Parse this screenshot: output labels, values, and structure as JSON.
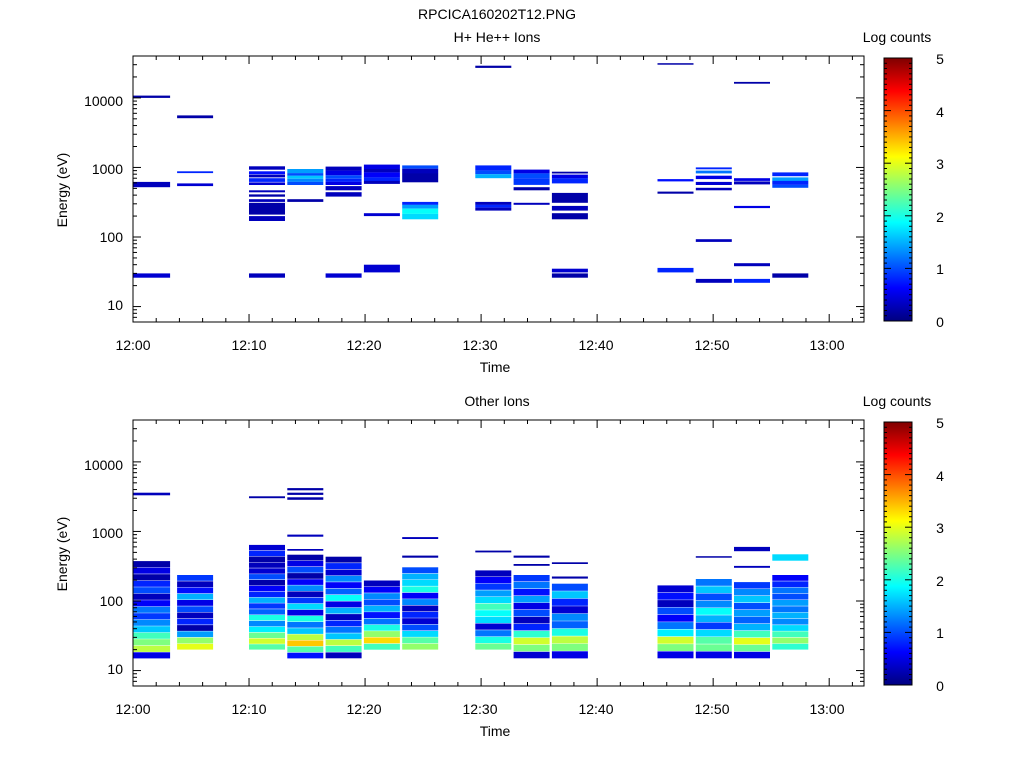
{
  "figure_title": "RPCICA160202T12.PNG",
  "colormap": [
    "#00007f",
    "#0000ff",
    "#007fff",
    "#00ffff",
    "#7fff7f",
    "#ffff00",
    "#ff7f00",
    "#ff0000",
    "#7f0000"
  ],
  "chart_data": [
    {
      "type": "heatmap",
      "title": "H+ He++ Ions",
      "xlabel": "Time",
      "ylabel": "Energy (eV)",
      "xlim": [
        "12:00",
        "13:03"
      ],
      "xticks": [
        "12:00",
        "12:10",
        "12:20",
        "12:30",
        "12:40",
        "12:50",
        "13:00"
      ],
      "yscale": "log",
      "ylim": [
        6,
        40000
      ],
      "yticks": [
        "10",
        "100",
        "1000",
        "10000"
      ],
      "grid": false,
      "colorbar": {
        "label": "Log counts",
        "range": [
          0,
          5
        ],
        "ticks": [
          "0",
          "1",
          "2",
          "3",
          "4",
          "5"
        ]
      },
      "time_bins_min": [
        [
          0,
          3.2
        ],
        [
          3.8,
          6.9
        ],
        [
          10.0,
          13.1
        ],
        [
          13.3,
          16.4
        ],
        [
          16.6,
          19.7
        ],
        [
          19.9,
          23.0
        ],
        [
          23.2,
          26.3
        ],
        [
          29.5,
          32.6
        ],
        [
          32.8,
          35.9
        ],
        [
          36.1,
          39.2
        ],
        [
          45.2,
          48.3
        ],
        [
          48.5,
          51.6
        ],
        [
          51.8,
          54.9
        ],
        [
          55.1,
          58.2
        ]
      ],
      "cells_note": "each cell: [time_bin_index, energy_low_eV, energy_high_eV, log_counts]",
      "cells": [
        [
          0,
          10000,
          10800,
          0.2
        ],
        [
          0,
          520,
          620,
          0.3
        ],
        [
          0,
          26,
          30,
          0.4
        ],
        [
          1,
          5100,
          5600,
          0.2
        ],
        [
          1,
          830,
          880,
          0.8
        ],
        [
          1,
          540,
          590,
          0.4
        ],
        [
          2,
          930,
          1040,
          0.3
        ],
        [
          2,
          800,
          880,
          0.7
        ],
        [
          2,
          720,
          790,
          0.3
        ],
        [
          2,
          620,
          700,
          0.8
        ],
        [
          2,
          560,
          610,
          0.4
        ],
        [
          2,
          440,
          470,
          0.3
        ],
        [
          2,
          380,
          410,
          0.2
        ],
        [
          2,
          320,
          350,
          0.3
        ],
        [
          2,
          210,
          310,
          0.2
        ],
        [
          2,
          170,
          200,
          0.3
        ],
        [
          2,
          26,
          30,
          0.3
        ],
        [
          3,
          830,
          950,
          1.4
        ],
        [
          3,
          760,
          830,
          1.0
        ],
        [
          3,
          690,
          760,
          1.6
        ],
        [
          3,
          620,
          690,
          1.3
        ],
        [
          3,
          560,
          620,
          1.0
        ],
        [
          3,
          320,
          350,
          0.2
        ],
        [
          4,
          900,
          1030,
          0.3
        ],
        [
          4,
          770,
          900,
          0.5
        ],
        [
          4,
          690,
          770,
          1.0
        ],
        [
          4,
          620,
          690,
          0.8
        ],
        [
          4,
          560,
          620,
          0.5
        ],
        [
          4,
          470,
          540,
          0.3
        ],
        [
          4,
          380,
          440,
          0.3
        ],
        [
          4,
          26,
          30,
          0.4
        ],
        [
          5,
          950,
          1100,
          0.5
        ],
        [
          5,
          850,
          950,
          0.3
        ],
        [
          5,
          720,
          850,
          0.6
        ],
        [
          5,
          640,
          720,
          0.8
        ],
        [
          5,
          580,
          640,
          0.3
        ],
        [
          5,
          200,
          220,
          0.4
        ],
        [
          5,
          31,
          40,
          0.4
        ],
        [
          6,
          960,
          1070,
          1.0
        ],
        [
          6,
          820,
          960,
          0.3
        ],
        [
          6,
          610,
          820,
          0.2
        ],
        [
          6,
          290,
          320,
          0.8
        ],
        [
          6,
          255,
          290,
          1.4
        ],
        [
          6,
          215,
          255,
          1.9
        ],
        [
          6,
          180,
          215,
          1.7
        ],
        [
          7,
          27000,
          29000,
          0.2
        ],
        [
          7,
          900,
          1070,
          0.8
        ],
        [
          7,
          800,
          900,
          1.0
        ],
        [
          7,
          700,
          800,
          1.5
        ],
        [
          7,
          290,
          320,
          0.3
        ],
        [
          7,
          265,
          290,
          0.8
        ],
        [
          7,
          240,
          265,
          0.3
        ],
        [
          8,
          820,
          930,
          0.5
        ],
        [
          8,
          700,
          820,
          1.0
        ],
        [
          8,
          560,
          700,
          0.9
        ],
        [
          8,
          470,
          520,
          0.2
        ],
        [
          8,
          290,
          310,
          0.3
        ],
        [
          9,
          820,
          870,
          0.2
        ],
        [
          9,
          700,
          790,
          0.5
        ],
        [
          9,
          590,
          700,
          0.8
        ],
        [
          9,
          310,
          430,
          0.2
        ],
        [
          9,
          240,
          280,
          0.3
        ],
        [
          9,
          180,
          220,
          0.2
        ],
        [
          9,
          31,
          35,
          0.4
        ],
        [
          9,
          26,
          30,
          0.2
        ],
        [
          10,
          30000,
          31500,
          0.2
        ],
        [
          10,
          630,
          680,
          0.7
        ],
        [
          10,
          420,
          450,
          0.2
        ],
        [
          10,
          31,
          36,
          0.8
        ],
        [
          11,
          940,
          1000,
          0.8
        ],
        [
          11,
          820,
          900,
          1.2
        ],
        [
          11,
          680,
          760,
          0.5
        ],
        [
          11,
          560,
          620,
          0.4
        ],
        [
          11,
          470,
          510,
          0.3
        ],
        [
          11,
          85,
          93,
          0.3
        ],
        [
          11,
          22,
          25,
          0.3
        ],
        [
          12,
          16000,
          17000,
          0.2
        ],
        [
          12,
          640,
          700,
          0.5
        ],
        [
          12,
          570,
          630,
          0.3
        ],
        [
          12,
          260,
          280,
          0.5
        ],
        [
          12,
          38,
          42,
          0.3
        ],
        [
          12,
          22,
          25,
          0.8
        ],
        [
          13,
          750,
          850,
          0.8
        ],
        [
          13,
          640,
          720,
          1.4
        ],
        [
          13,
          560,
          640,
          0.8
        ],
        [
          13,
          510,
          560,
          1.0
        ],
        [
          13,
          26,
          30,
          0.2
        ]
      ]
    },
    {
      "type": "heatmap",
      "title": "Other Ions",
      "xlabel": "Time",
      "ylabel": "Energy (eV)",
      "xlim": [
        "12:00",
        "13:03"
      ],
      "xticks": [
        "12:00",
        "12:10",
        "12:20",
        "12:30",
        "12:40",
        "12:50",
        "13:00"
      ],
      "yscale": "log",
      "ylim": [
        6,
        40000
      ],
      "yticks": [
        "10",
        "100",
        "1000",
        "10000"
      ],
      "grid": false,
      "colorbar": {
        "label": "Log counts",
        "range": [
          0,
          5
        ],
        "ticks": [
          "0",
          "1",
          "2",
          "3",
          "4",
          "5"
        ]
      },
      "time_bins_min": [
        [
          0,
          3.2
        ],
        [
          3.8,
          6.9
        ],
        [
          10.0,
          13.1
        ],
        [
          13.3,
          16.4
        ],
        [
          16.6,
          19.7
        ],
        [
          19.9,
          23.0
        ],
        [
          23.2,
          26.3
        ],
        [
          29.5,
          32.6
        ],
        [
          32.8,
          35.9
        ],
        [
          36.1,
          39.2
        ],
        [
          45.2,
          48.3
        ],
        [
          48.5,
          51.6
        ],
        [
          51.8,
          54.9
        ],
        [
          55.1,
          58.2
        ]
      ],
      "cells_note": "each column: [time_bin_index, energy_bottom_eV, energy_top_eV, [log_counts per equal-log row from bottom]]",
      "columns": [
        [
          0,
          15,
          380,
          [
            0.5,
            2.8,
            2.5,
            2.2,
            1.6,
            1.3,
            0.9,
            1.2,
            0.6,
            0.3,
            1.0,
            0.8,
            0.2,
            0.5,
            0.2
          ]
        ],
        [
          1,
          20,
          240,
          [
            3.0,
            2.6,
            1.4,
            0.2,
            0.8,
            0.3,
            1.0,
            0.5,
            1.5,
            0.7,
            0.3,
            0.9
          ]
        ],
        [
          2,
          20,
          650,
          [
            2.3,
            2.9,
            2.4,
            1.8,
            1.3,
            2.0,
            1.1,
            0.9,
            1.5,
            0.8,
            0.6,
            0.2,
            1.0,
            0.4,
            0.3,
            0.2,
            0.8,
            0.4
          ]
        ],
        [
          3,
          15,
          470,
          [
            0.7,
            2.3,
            3.4,
            2.8,
            1.6,
            1.2,
            2.0,
            0.5,
            1.7,
            0.9,
            0.3,
            1.3,
            0.6,
            0.2,
            1.0,
            0.5,
            0.2
          ]
        ],
        [
          4,
          15,
          440,
          [
            0.3,
            2.2,
            2.8,
            1.6,
            1.2,
            0.8,
            0.3,
            1.5,
            0.5,
            1.9,
            1.1,
            0.6,
            1.3,
            0.4,
            0.8,
            0.2
          ]
        ],
        [
          5,
          20,
          200,
          [
            2.2,
            3.3,
            2.6,
            2.0,
            1.2,
            0.7,
            1.5,
            1.0,
            1.3,
            0.6,
            0.3
          ]
        ],
        [
          6,
          20,
          310,
          [
            2.6,
            2.3,
            1.7,
            1.0,
            0.4,
            0.8,
            0.3,
            1.3,
            0.6,
            2.0,
            1.7,
            1.5,
            1.0
          ]
        ],
        [
          7,
          20,
          280,
          [
            2.4,
            2.0,
            1.2,
            0.4,
            1.7,
            1.9,
            2.2,
            1.7,
            1.4,
            0.9,
            0.6,
            0.3
          ]
        ],
        [
          8,
          15,
          240,
          [
            0.4,
            2.5,
            2.9,
            2.1,
            0.8,
            0.3,
            1.0,
            0.5,
            1.4,
            0.7,
            1.2,
            0.9
          ]
        ],
        [
          9,
          15,
          180,
          [
            0.5,
            2.5,
            2.8,
            2.0,
            1.1,
            1.3,
            0.4,
            0.8,
            1.6,
            1.0
          ]
        ],
        [
          10,
          15,
          170,
          [
            0.5,
            2.5,
            2.9,
            1.8,
            1.2,
            0.6,
            1.0,
            0.3,
            0.7,
            0.4
          ]
        ],
        [
          11,
          15,
          210,
          [
            0.5,
            2.4,
            2.3,
            1.7,
            0.9,
            1.5,
            1.9,
            1.3,
            1.0,
            1.6,
            1.2
          ]
        ],
        [
          12,
          15,
          190,
          [
            0.5,
            2.4,
            3.0,
            2.2,
            1.5,
            1.1,
            1.4,
            1.0,
            1.6,
            1.3,
            0.9
          ]
        ],
        [
          13,
          20,
          240,
          [
            2.1,
            2.6,
            2.2,
            1.7,
            1.3,
            1.5,
            1.2,
            1.4,
            1.0,
            1.2,
            0.8,
            0.6
          ]
        ]
      ],
      "extra_cells": [
        [
          0,
          3300,
          3600,
          0.3
        ],
        [
          2,
          3000,
          3200,
          0.2
        ],
        [
          3,
          3900,
          4200,
          0.2
        ],
        [
          3,
          3350,
          3600,
          0.2
        ],
        [
          3,
          2850,
          3100,
          0.2
        ],
        [
          3,
          840,
          900,
          0.3
        ],
        [
          3,
          530,
          560,
          0.3
        ],
        [
          6,
          780,
          830,
          0.3
        ],
        [
          6,
          420,
          450,
          0.2
        ],
        [
          7,
          500,
          530,
          0.2
        ],
        [
          8,
          420,
          450,
          0.2
        ],
        [
          8,
          320,
          340,
          0.2
        ],
        [
          9,
          340,
          360,
          0.2
        ],
        [
          9,
          210,
          225,
          0.2
        ],
        [
          11,
          420,
          440,
          0.2
        ],
        [
          12,
          520,
          600,
          0.3
        ],
        [
          12,
          300,
          320,
          0.3
        ],
        [
          13,
          380,
          470,
          1.7
        ]
      ]
    }
  ]
}
